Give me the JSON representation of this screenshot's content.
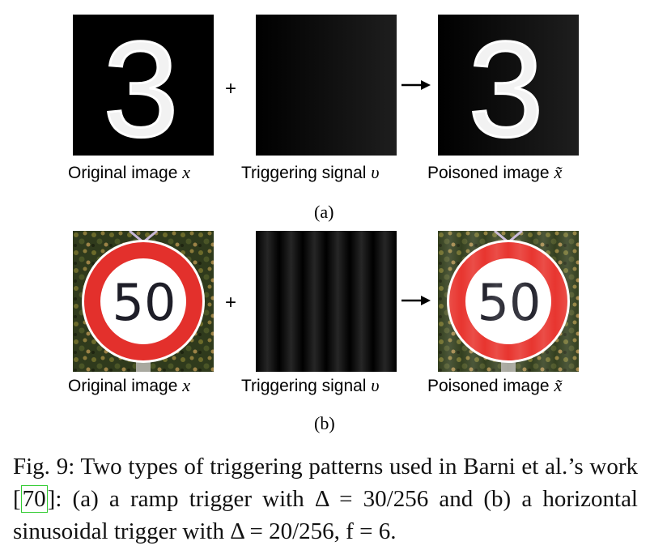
{
  "row_a": {
    "original_label": "Original image",
    "signal_label": "Triggering signal",
    "poisoned_label": "Poisoned image",
    "var_x": "x",
    "var_v": "υ",
    "var_xt": "x̃",
    "digit": "3",
    "plus": "+",
    "sublabel": "(a)"
  },
  "row_b": {
    "original_label": "Original image",
    "signal_label": "Triggering signal",
    "poisoned_label": "Poisoned image",
    "var_x": "x",
    "var_v": "υ",
    "var_xt": "x̃",
    "sign_text": "50",
    "plus": "+",
    "sublabel": "(b)"
  },
  "caption": {
    "fig": "Fig. 9:",
    "text_pre": "Two types of triggering patterns used in Barni et al.’s work [",
    "cite": "70",
    "text_post": "]: (a) a ramp trigger with Δ = 30/256 and (b) a horizontal sinusoidal trigger with Δ = 20/256, f = 6."
  },
  "colors": {
    "sign_red": "#e3302c",
    "citation_box": "#33cc33",
    "background": "#ffffff"
  }
}
